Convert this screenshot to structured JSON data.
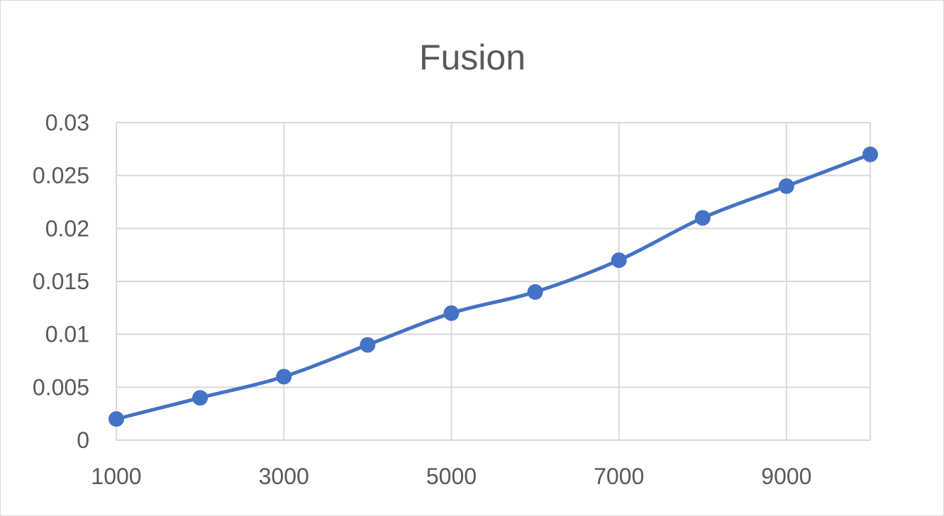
{
  "chart_data": {
    "type": "line",
    "title": "Fusion",
    "xlabel": "",
    "ylabel": "",
    "x": [
      1000,
      2000,
      3000,
      4000,
      5000,
      6000,
      7000,
      8000,
      9000,
      10000
    ],
    "series": [
      {
        "values": [
          0.002,
          0.004,
          0.006,
          0.009,
          0.012,
          0.014,
          0.017,
          0.021,
          0.024,
          0.027
        ]
      }
    ],
    "xlim": [
      1000,
      10000
    ],
    "ylim": [
      0,
      0.03
    ],
    "x_ticks": [
      1000,
      3000,
      5000,
      7000,
      9000
    ],
    "x_tick_labels": [
      "1000",
      "3000",
      "5000",
      "7000",
      "9000"
    ],
    "y_ticks": [
      0,
      0.005,
      0.01,
      0.015,
      0.02,
      0.025,
      0.03
    ],
    "y_tick_labels": [
      "0",
      "0.005",
      "0.01",
      "0.015",
      "0.02",
      "0.025",
      "0.03"
    ],
    "x_gridlines": [
      1000,
      3000,
      5000,
      7000,
      9000,
      10000
    ],
    "grid": true,
    "smooth": true,
    "markers": true,
    "legend": "none",
    "colors": {
      "series": "#4472c4",
      "grid": "#d9d9d9",
      "text": "#595959",
      "border": "#d9d9d9"
    }
  }
}
